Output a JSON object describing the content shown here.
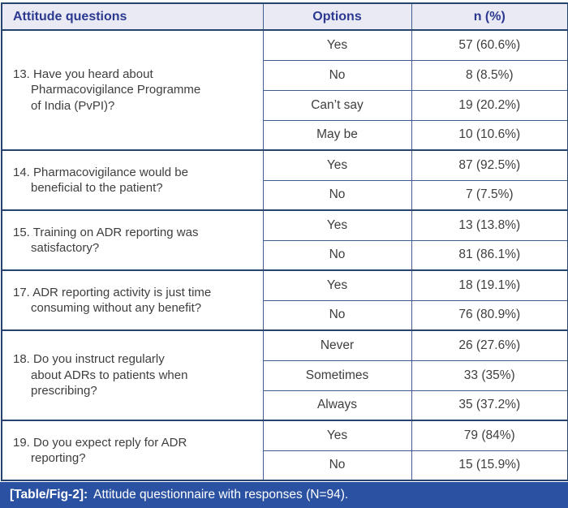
{
  "header": {
    "question_col": "Attitude questions",
    "options_col": "Options",
    "n_col": "n (%)"
  },
  "questions": [
    {
      "question": "13. Have you heard about\nPharmacovigilance Programme\nof India (PvPI)?",
      "rows": [
        {
          "option": "Yes",
          "n": "57 (60.6%)"
        },
        {
          "option": "No",
          "n": "8 (8.5%)"
        },
        {
          "option": "Can’t say",
          "n": "19 (20.2%)"
        },
        {
          "option": "May be",
          "n": "10 (10.6%)"
        }
      ]
    },
    {
      "question": "14. Pharmacovigilance would be\nbeneficial to the patient?",
      "rows": [
        {
          "option": "Yes",
          "n": "87 (92.5%)"
        },
        {
          "option": "No",
          "n": "7 (7.5%)"
        }
      ]
    },
    {
      "question": "15. Training on ADR reporting was\nsatisfactory?",
      "rows": [
        {
          "option": "Yes",
          "n": "13 (13.8%)"
        },
        {
          "option": "No",
          "n": "81 (86.1%)"
        }
      ]
    },
    {
      "question": "17. ADR reporting activity is just time\nconsuming without any benefit?",
      "rows": [
        {
          "option": "Yes",
          "n": "18 (19.1%)"
        },
        {
          "option": "No",
          "n": "76 (80.9%)"
        }
      ]
    },
    {
      "question": "18. Do you instruct regularly\nabout ADRs to patients when\nprescribing?",
      "rows": [
        {
          "option": "Never",
          "n": "26 (27.6%)"
        },
        {
          "option": "Sometimes",
          "n": "33 (35%)"
        },
        {
          "option": "Always",
          "n": "35 (37.2%)"
        }
      ]
    },
    {
      "question": "19. Do you expect reply for ADR\nreporting?",
      "rows": [
        {
          "option": "Yes",
          "n": "79 (84%)"
        },
        {
          "option": "No",
          "n": "15 (15.9%)"
        }
      ]
    }
  ],
  "caption": {
    "label": "[Table/Fig-2]:",
    "text": "Attitude questionnaire with responses (N=94)."
  },
  "colors": {
    "header_bg": "#e9eaf4",
    "header_text": "#2b3990",
    "border_thick": "#27446e",
    "border_thin": "#3f5e8c",
    "body_text": "#3e3e3e",
    "caption_bg": "#2b52a2",
    "caption_text": "#ffffff"
  }
}
